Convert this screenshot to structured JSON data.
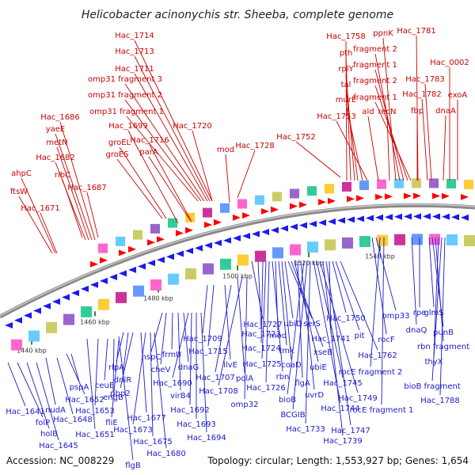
{
  "title": "Helicobacter acinonychis str. Sheeba, complete genome",
  "footer": {
    "accession": "Accession: NC_008229",
    "summary": "Topology: circular; Length: 1,553,927 bp; Genes: 1,654"
  },
  "colors": {
    "forward_label": "#cc0000",
    "reverse_label": "#1a1acc",
    "forward_arrow": "#ff0000",
    "reverse_arrow": "#1a1aee",
    "backbone": "#8a8a8a",
    "tick": "#2a8a2a"
  },
  "ticks": [
    "1440 kbp",
    "1460 kbp",
    "1480 kbp",
    "1500 kbp",
    "1520 kbp",
    "1540 kbp"
  ],
  "forward_labels": [
    "Hac_1714",
    "Hac_1713",
    "Hac_1711",
    "omp31 fragment 3",
    "omp31 fragment 2",
    "omp31 fragment 1",
    "Hac_1699",
    "Hac_1720",
    "groEL",
    "Hac_1716",
    "groES",
    "parA",
    "mod",
    "Hac_1728",
    "Hac_1752",
    "Hac_1686",
    "yaeE",
    "metN",
    "Hac_1682",
    "ahpC",
    "ribC",
    "Hac_1687",
    "ftsW",
    "Hac_1671",
    "Hac_1758",
    "pth",
    "rplY",
    "tal",
    "murE",
    "Hac_1753",
    "ppnK",
    "fragment 2",
    "fragment 1",
    "fragment 2",
    "fragment 1",
    "ald",
    "recN",
    "Hac_1781",
    "Hac_0002",
    "Hac_1783",
    "Hac_1782",
    "fbp",
    "exoA",
    "dnaA"
  ],
  "reverse_labels": [
    "Hac_1641",
    "folP",
    "holB",
    "Hac_1645",
    "nudA",
    "Hac_1648",
    "Hac_1652",
    "pspA",
    "Hac_1651",
    "Hac_1653",
    "ceuE",
    "engB",
    "fliE",
    "rlpA",
    "dniR",
    "pbp2",
    "Hac_1677",
    "Hac_1673",
    "Hac_1675",
    "Hac_1680",
    "nspC",
    "cheV",
    "frmU",
    "virB4",
    "dnaG",
    "Hac_1690",
    "Hac_1692",
    "Hac_1693",
    "Hac_1694",
    "Hac_1709",
    "Hac_1715",
    "ilvE",
    "Hac_1707",
    "polA",
    "Hac_1708",
    "omp32",
    "Hac_1727",
    "Hac_1723",
    "Hac_1724",
    "Hac_1725",
    "Hac_1726",
    "rbn",
    "mod",
    "tmk",
    "coaD",
    "ubiD",
    "serS",
    "xseB",
    "ubiE",
    "flgA",
    "uvrD",
    "bioB",
    "BCGIB",
    "Hac_1733",
    "Hac_1744",
    "Hac_1745",
    "Hac_1749",
    "Hac_1739",
    "Hac_1747",
    "Hac_1741",
    "Hac_1750",
    "pit",
    "Hac_1762",
    "rocF",
    "omp33",
    "rocE fragment 2",
    "rocE fragment 1",
    "dnaQ",
    "rpe",
    "glmS",
    "punB",
    "rbn fragment",
    "thyX",
    "bioB fragment",
    "Hac_1788",
    "flgB"
  ]
}
